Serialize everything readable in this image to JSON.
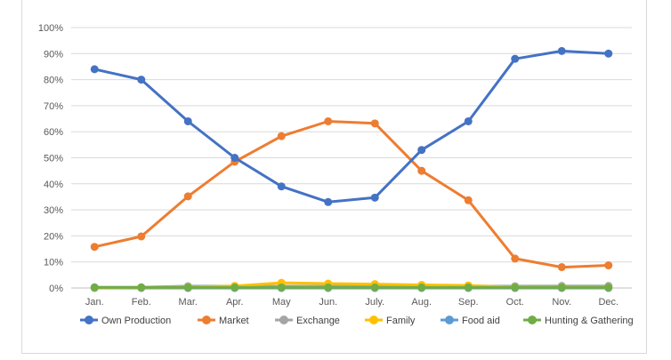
{
  "chart_data": {
    "type": "line",
    "title": "",
    "xlabel": "",
    "ylabel": "",
    "categories": [
      "Jan.",
      "Feb.",
      "Mar.",
      "Apr.",
      "May",
      "Jun.",
      "July.",
      "Aug.",
      "Sep.",
      "Oct.",
      "Nov.",
      "Dec."
    ],
    "ylim": [
      0,
      100
    ],
    "y_ticks": [
      "0%",
      "10%",
      "20%",
      "30%",
      "40%",
      "50%",
      "60%",
      "70%",
      "80%",
      "90%",
      "100%"
    ],
    "grid": true,
    "legend_position": "bottom",
    "series": [
      {
        "name": "Own Production",
        "color": "#4472c4",
        "values": [
          84,
          80,
          64,
          50,
          39,
          33,
          34.7,
          53,
          64,
          88,
          91,
          90
        ]
      },
      {
        "name": "Market",
        "color": "#ed7d31",
        "values": [
          15.8,
          19.8,
          35.2,
          48.5,
          58.3,
          64,
          63.2,
          45,
          33.7,
          11.3,
          8,
          8.7
        ]
      },
      {
        "name": "Exchange",
        "color": "#a5a5a5",
        "values": [
          0.3,
          0.3,
          0.7,
          0.7,
          0.7,
          0.7,
          0.7,
          0.7,
          0.7,
          0.7,
          0.8,
          0.8
        ]
      },
      {
        "name": "Family",
        "color": "#ffc000",
        "values": [
          0.1,
          0.2,
          0.3,
          0.8,
          2,
          1.7,
          1.5,
          1.2,
          1,
          0.3,
          0.3,
          0.3
        ]
      },
      {
        "name": "Food aid",
        "color": "#5b9bd5",
        "values": [
          0,
          0,
          0,
          0,
          0,
          0,
          0,
          0,
          0,
          0,
          0,
          0
        ]
      },
      {
        "name": "Hunting & Gathering",
        "color": "#70ad47",
        "values": [
          0.2,
          0.2,
          0.2,
          0.2,
          0.2,
          0.2,
          0.2,
          0.2,
          0.2,
          0.2,
          0.2,
          0.2
        ]
      }
    ]
  }
}
